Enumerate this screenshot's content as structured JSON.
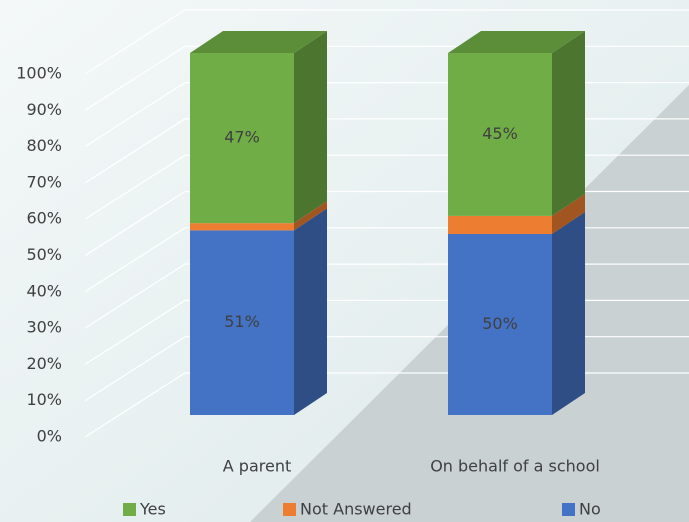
{
  "chart_data": {
    "type": "bar3d_stacked",
    "categories": [
      "A parent",
      "On behalf of a school"
    ],
    "series": [
      {
        "name": "No",
        "color": "#4472c4",
        "values": [
          51,
          50
        ],
        "value_labels": [
          "51%",
          "50%"
        ]
      },
      {
        "name": "Not Answered",
        "color": "#ed7d31",
        "values": [
          2,
          5
        ]
      },
      {
        "name": "Yes",
        "color": "#70ad47",
        "values": [
          47,
          45
        ],
        "value_labels": [
          "47%",
          "45%"
        ]
      }
    ],
    "legend_order": [
      "Yes",
      "Not Answered",
      "No"
    ],
    "ylim": [
      0,
      100
    ],
    "yticks": [
      {
        "value": 0,
        "label": "0%"
      },
      {
        "value": 10,
        "label": "10%"
      },
      {
        "value": 20,
        "label": "20%"
      },
      {
        "value": 30,
        "label": "30%"
      },
      {
        "value": 40,
        "label": "40%"
      },
      {
        "value": 50,
        "label": "50%"
      },
      {
        "value": 60,
        "label": "60%"
      },
      {
        "value": 70,
        "label": "70%"
      },
      {
        "value": 80,
        "label": "80%"
      },
      {
        "value": 90,
        "label": "90%"
      },
      {
        "value": 100,
        "label": "100%"
      }
    ],
    "grid": true,
    "legend": "bottom"
  }
}
